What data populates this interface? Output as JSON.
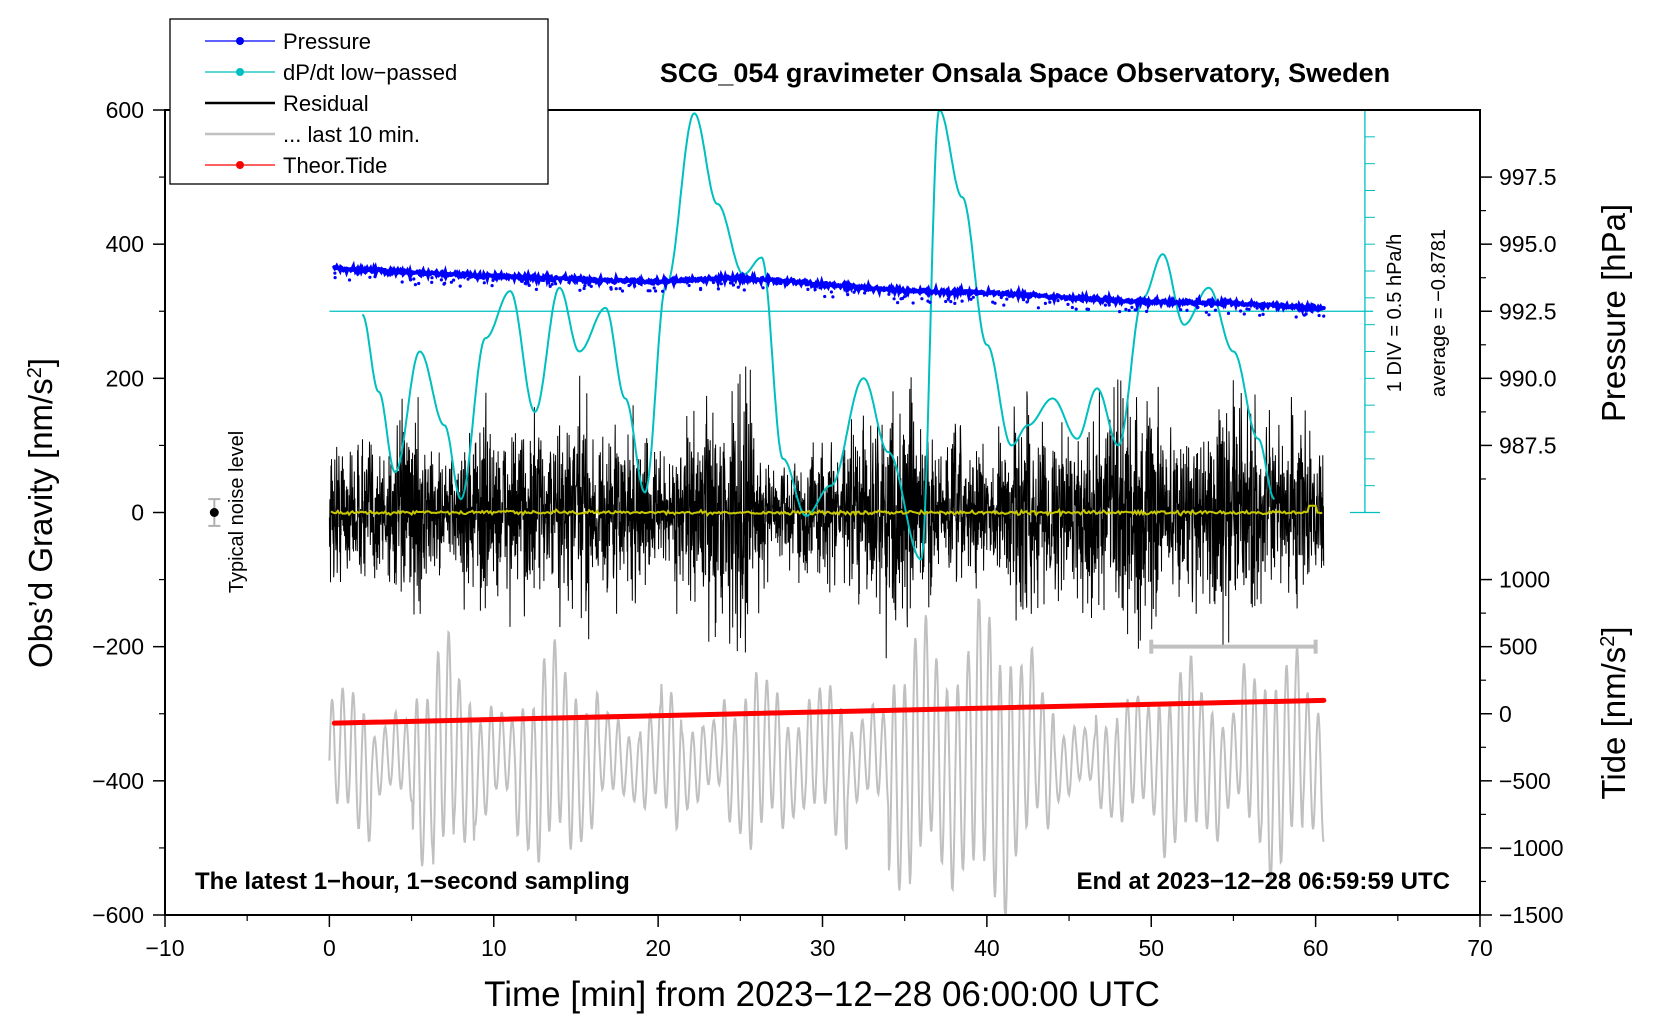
{
  "chart_data": {
    "type": "line",
    "title": "SCG_054 gravimeter Onsala Space Observatory, Sweden",
    "xlabel": "Time [min] from 2023−12−28 06:00:00 UTC",
    "ylabel_left": "Obs’d Gravity [nm/s²]",
    "ylabel_left_base": "Obs’d Gravity [nm/s",
    "ylabel_left_sup": "2",
    "ylabel_left_end": "]",
    "ylabel_right_top": "Pressure [hPa]",
    "ylabel_right_bottom": "Tide [nm/s²]",
    "ylabel_right_bottom_base": "Tide [nm/s",
    "ylabel_right_bottom_sup": "2",
    "ylabel_right_bottom_end": "]",
    "xlim": [
      -10,
      70
    ],
    "ylim_left": [
      -600,
      600
    ],
    "x_ticks": [
      {
        "value": -10,
        "label": "−10"
      },
      {
        "value": 0,
        "label": "0"
      },
      {
        "value": 10,
        "label": "10"
      },
      {
        "value": 20,
        "label": "20"
      },
      {
        "value": 30,
        "label": "30"
      },
      {
        "value": 40,
        "label": "40"
      },
      {
        "value": 50,
        "label": "50"
      },
      {
        "value": 60,
        "label": "60"
      },
      {
        "value": 70,
        "label": "70"
      }
    ],
    "y_ticks_left": [
      {
        "value": 600,
        "label": "600"
      },
      {
        "value": 400,
        "label": "400"
      },
      {
        "value": 200,
        "label": "200"
      },
      {
        "value": 0,
        "label": "0"
      },
      {
        "value": -200,
        "label": "−200"
      },
      {
        "value": -400,
        "label": "−400"
      },
      {
        "value": -600,
        "label": "−600"
      }
    ],
    "pressure_axis": {
      "ticks": [
        {
          "value": 997.5,
          "label": "997.5"
        },
        {
          "value": 995.0,
          "label": "995.0"
        },
        {
          "value": 992.5,
          "label": "992.5"
        },
        {
          "value": 990.0,
          "label": "990.0"
        },
        {
          "value": 987.5,
          "label": "987.5"
        }
      ],
      "gravity_at_992_5": 300,
      "gravity_per_hPa": 40
    },
    "tide_axis": {
      "ticks": [
        {
          "value": 1000,
          "label": "1000"
        },
        {
          "value": 500,
          "label": "500"
        },
        {
          "value": 0,
          "label": "0"
        },
        {
          "value": -500,
          "label": "−500"
        },
        {
          "value": -1000,
          "label": "−1000"
        },
        {
          "value": -1500,
          "label": "−1500"
        }
      ],
      "gravity_at_0": -300,
      "gravity_per_unit": 0.2
    },
    "dpdt_scale": {
      "label_div": "1 DIV = 0.5 hPa/h",
      "label_avg": "average = −0.8781",
      "gravity_top": 600,
      "gravity_bottom": 0,
      "divisions": 15,
      "zero_line_gravity": 300
    },
    "series": [
      {
        "name": "Pressure",
        "color": "#0000ff",
        "style": "dots",
        "x": [
          0.3,
          5,
          10,
          15,
          20,
          25,
          30,
          35,
          40,
          45,
          50,
          55,
          60.5
        ],
        "values": [
          994.1,
          993.95,
          993.8,
          993.7,
          993.6,
          993.75,
          993.5,
          993.25,
          993.2,
          993.0,
          992.85,
          992.8,
          992.6
        ]
      },
      {
        "name": "dP/dt low−passed",
        "color": "#00bfbf",
        "style": "line",
        "x": [
          2,
          3,
          4,
          5.5,
          7,
          8,
          9.5,
          11,
          12.5,
          14,
          15.2,
          16.8,
          18,
          19.2,
          20.5,
          22.2,
          23.6,
          25.2,
          26.3,
          27.6,
          29,
          30.5,
          32.5,
          34,
          36,
          37.1,
          38.5,
          40,
          41.5,
          42.5,
          44,
          45.5,
          46.7,
          48,
          49.5,
          50.7,
          52,
          53.5,
          55,
          56.5,
          57.5
        ],
        "values": [
          295,
          180,
          60,
          240,
          130,
          20,
          260,
          330,
          150,
          335,
          240,
          305,
          170,
          30,
          340,
          595,
          460,
          355,
          380,
          80,
          -5,
          40,
          200,
          90,
          -70,
          600,
          470,
          250,
          100,
          130,
          170,
          110,
          185,
          100,
          320,
          385,
          280,
          335,
          240,
          110,
          20
        ]
      },
      {
        "name": "Residual",
        "color": "#000000",
        "style": "line",
        "x_range": [
          0,
          60.5
        ],
        "typical_amplitude": 120,
        "peak_min": -270,
        "peak_max": 270
      },
      {
        "name": "... last 10 min.",
        "color": "#c0c0c0",
        "style": "line",
        "x_range": [
          0,
          60.5
        ],
        "gravity_center": -370,
        "typical_amplitude": 110,
        "peak_min": -600,
        "peak_max": -150
      },
      {
        "name": "Theor.Tide",
        "color": "#ff0000",
        "style": "dots",
        "x": [
          0.3,
          60.5
        ],
        "tide_values": [
          -70,
          100
        ]
      },
      {
        "name": "mean",
        "color": "#c8c800",
        "style": "line",
        "x": [
          0.1,
          60.5
        ],
        "values": [
          0,
          0
        ]
      }
    ],
    "legend": {
      "position": "top-left",
      "entries": [
        {
          "label": "Pressure",
          "color": "#0000ff",
          "marker": true
        },
        {
          "label": "dP/dt low−passed",
          "color": "#00bfbf",
          "marker": true
        },
        {
          "label": "Residual",
          "color": "#000000",
          "marker": false
        },
        {
          "label": "... last 10 min.",
          "color": "#c0c0c0",
          "marker": false
        },
        {
          "label": "Theor.Tide",
          "color": "#ff0000",
          "marker": true
        }
      ]
    },
    "annotations": {
      "noise_label": "Typical noise level",
      "noise_x": -7,
      "noise_value": 0,
      "noise_halfwidth": 20,
      "last10_bar": {
        "x_start": 50,
        "x_end": 60,
        "y": -200
      },
      "bottom_left": "The latest 1−hour, 1−second sampling",
      "bottom_right": "End at 2023−12−28 06:59:59 UTC"
    }
  }
}
